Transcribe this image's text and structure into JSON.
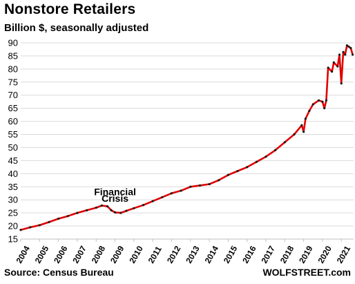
{
  "header": {
    "title": "Nonstore Retailers",
    "subtitle": "Billion $, seasonally adjusted"
  },
  "footer": {
    "source": "Source: Census Bureau",
    "credit": "WOLFSTREET.com"
  },
  "colors": {
    "line": "#e00000",
    "marker": "#1a1a1a",
    "grid": "#d9d9d9"
  },
  "chart_data": {
    "type": "line",
    "title": "Nonstore Retailers",
    "subtitle": "Billion $, seasonally adjusted",
    "ylim": [
      15,
      90
    ],
    "yticks": [
      15,
      20,
      25,
      30,
      35,
      40,
      45,
      50,
      55,
      60,
      65,
      70,
      75,
      80,
      85,
      90
    ],
    "xlim": [
      2004.0,
      2021.65
    ],
    "xticks": [
      "2004",
      "2005",
      "2006",
      "2007",
      "2008",
      "2009",
      "2010",
      "2011",
      "2012",
      "2013",
      "2014",
      "2015",
      "2016",
      "2017",
      "2018",
      "2019",
      "2020",
      "2021"
    ],
    "grid": true,
    "legend": "none",
    "annotations": [
      {
        "text": "Financial",
        "x": 2009.0,
        "y": 31.8
      },
      {
        "text": "Crisis",
        "x": 2009.0,
        "y": 29.2
      }
    ],
    "series": [
      {
        "x": [
          2004.0,
          2004.5,
          2005.0,
          2005.5,
          2006.0,
          2006.5,
          2007.0,
          2007.5,
          2008.0,
          2008.3,
          2008.6,
          2008.8,
          2009.0,
          2009.3,
          2009.6,
          2010.0,
          2010.5,
          2011.0,
          2011.5,
          2012.0,
          2012.5,
          2013.0,
          2013.5,
          2014.0,
          2014.5,
          2015.0,
          2015.5,
          2016.0,
          2016.5,
          2017.0,
          2017.5,
          2018.0,
          2018.5,
          2018.9,
          2019.0,
          2019.1,
          2019.3,
          2019.5,
          2019.8,
          2020.0,
          2020.1,
          2020.2,
          2020.3,
          2020.5,
          2020.6,
          2020.8,
          2020.9,
          2021.0,
          2021.1,
          2021.2,
          2021.3,
          2021.4,
          2021.5,
          2021.6
        ],
        "values": [
          18.5,
          19.5,
          20.3,
          21.5,
          22.8,
          23.8,
          25.0,
          26.0,
          27.0,
          27.8,
          27.5,
          26.0,
          25.2,
          25.0,
          25.8,
          26.8,
          28.0,
          29.5,
          31.0,
          32.5,
          33.5,
          35.0,
          35.5,
          36.0,
          37.5,
          39.5,
          41.0,
          42.5,
          44.5,
          46.5,
          49.0,
          52.0,
          55.0,
          58.5,
          56.0,
          61.0,
          64.0,
          66.5,
          68.0,
          67.5,
          65.0,
          68.0,
          80.5,
          79.0,
          82.5,
          81.0,
          85.5,
          74.5,
          86.5,
          85.5,
          89.0,
          88.5,
          88.0,
          85.5
        ]
      }
    ]
  }
}
